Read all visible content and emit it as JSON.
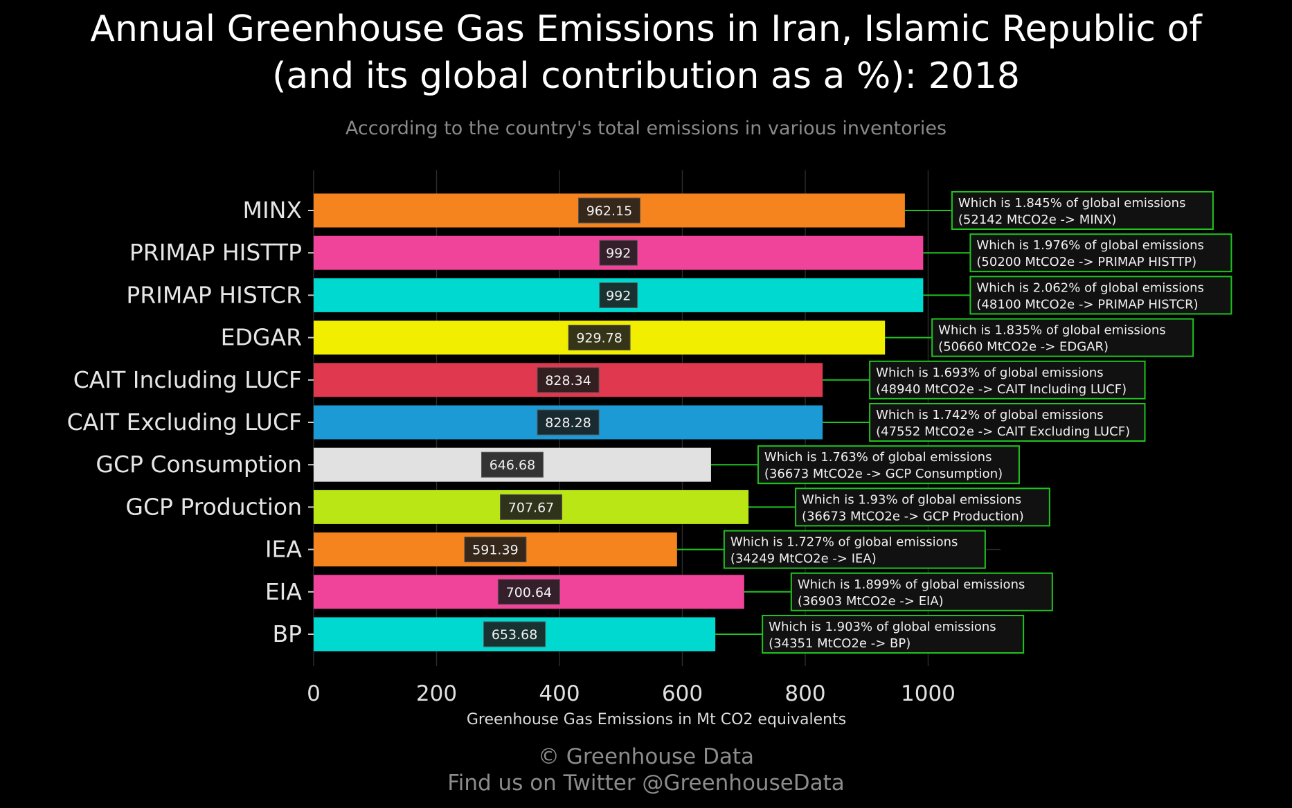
{
  "header": {
    "title_line1": "Annual Greenhouse Gas Emissions in Iran, Islamic Republic of",
    "title_line2": "(and its global contribution as a %): 2018",
    "subtitle": "According to the country's total emissions in various inventories"
  },
  "footer": {
    "credit_line1": "© Greenhouse Data",
    "credit_line2": "Find us on Twitter @GreenhouseData"
  },
  "chart_data": {
    "type": "bar",
    "orientation": "horizontal",
    "title": "Annual Greenhouse Gas Emissions in Iran, Islamic Republic of (and its global contribution as a %): 2018",
    "subtitle": "According to the country's total emissions in various inventories",
    "xlabel": "Greenhouse Gas Emissions in Mt CO2 equivalents",
    "ylabel": "",
    "xlim": [
      0,
      1100
    ],
    "xticks": [
      0,
      200,
      400,
      600,
      800,
      1000
    ],
    "grid": true,
    "categories": [
      "MINX",
      "PRIMAP HISTTP",
      "PRIMAP HISTCR",
      "EDGAR",
      "CAIT Including LUCF",
      "CAIT Excluding LUCF",
      "GCP Consumption",
      "GCP Production",
      "IEA",
      "EIA",
      "BP"
    ],
    "values": [
      962.15,
      992,
      992,
      929.78,
      828.34,
      828.28,
      646.68,
      707.67,
      591.39,
      700.64,
      653.68
    ],
    "value_labels": [
      "962.15",
      "992",
      "992",
      "929.78",
      "828.34",
      "828.28",
      "646.68",
      "707.67",
      "591.39",
      "700.64",
      "653.68"
    ],
    "colors": [
      "#f5841f",
      "#f0449a",
      "#00d9cf",
      "#f2ee00",
      "#e0384f",
      "#1b9ad6",
      "#e1e1e1",
      "#b9e614",
      "#f5841f",
      "#f0449a",
      "#00d9cf"
    ],
    "annotations": [
      {
        "line1": "Which is 1.845% of global emissions",
        "line2": "(52142 MtCO2e -> MINX)"
      },
      {
        "line1": "Which is 1.976% of global emissions",
        "line2": "(50200 MtCO2e -> PRIMAP HISTTP)"
      },
      {
        "line1": "Which is 2.062% of global emissions",
        "line2": "(48100 MtCO2e -> PRIMAP HISTCR)"
      },
      {
        "line1": "Which is 1.835% of global emissions",
        "line2": "(50660 MtCO2e -> EDGAR)"
      },
      {
        "line1": "Which is 1.693% of global emissions",
        "line2": "(48940 MtCO2e -> CAIT Including LUCF)"
      },
      {
        "line1": "Which is 1.742% of global emissions",
        "line2": "(47552 MtCO2e -> CAIT Excluding LUCF)"
      },
      {
        "line1": "Which is 1.763% of global emissions",
        "line2": "(36673 MtCO2e -> GCP Consumption)"
      },
      {
        "line1": "Which is 1.93% of global emissions",
        "line2": "(36673 MtCO2e -> GCP Production)"
      },
      {
        "line1": "Which is 1.727% of global emissions",
        "line2": "(34249 MtCO2e -> IEA)"
      },
      {
        "line1": "Which is 1.899% of global emissions",
        "line2": "(36903 MtCO2e -> EIA)"
      },
      {
        "line1": "Which is 1.903% of global emissions",
        "line2": "(34351 MtCO2e -> BP)"
      }
    ],
    "colors_ui": {
      "background": "#000000",
      "grid": "#2a2a2a",
      "annotation_border": "#1fc41f",
      "annotation_fill": "#111111",
      "value_label_fill": "#1a1a1a"
    }
  }
}
